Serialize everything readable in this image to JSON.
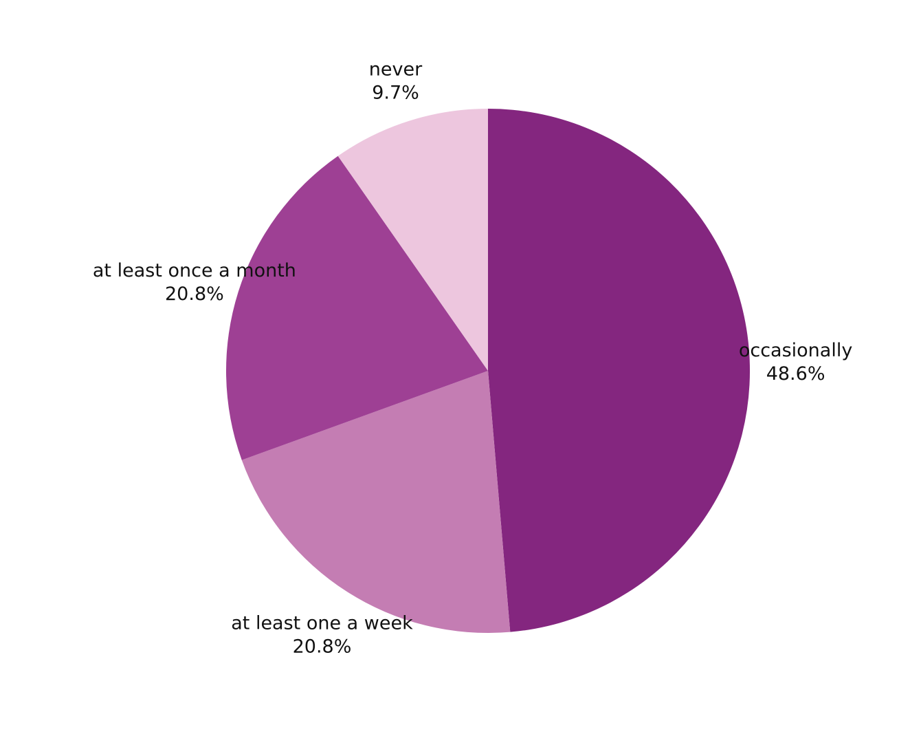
{
  "chart_data": {
    "type": "pie",
    "title": "",
    "slices": [
      {
        "label": "occasionally",
        "value": 48.6,
        "value_label": "48.6%",
        "color": "#84267f"
      },
      {
        "label": "at least one a week",
        "value": 20.8,
        "value_label": "20.8%",
        "color": "#c47db3"
      },
      {
        "label": "at least once a month",
        "value": 20.8,
        "value_label": "20.8%",
        "color": "#9e4094"
      },
      {
        "label": "never",
        "value": 9.7,
        "value_label": "9.7%",
        "color": "#edc6de"
      }
    ],
    "start_angle": "12 o'clock",
    "direction": "clockwise",
    "legend": "none",
    "labels": "outside"
  }
}
